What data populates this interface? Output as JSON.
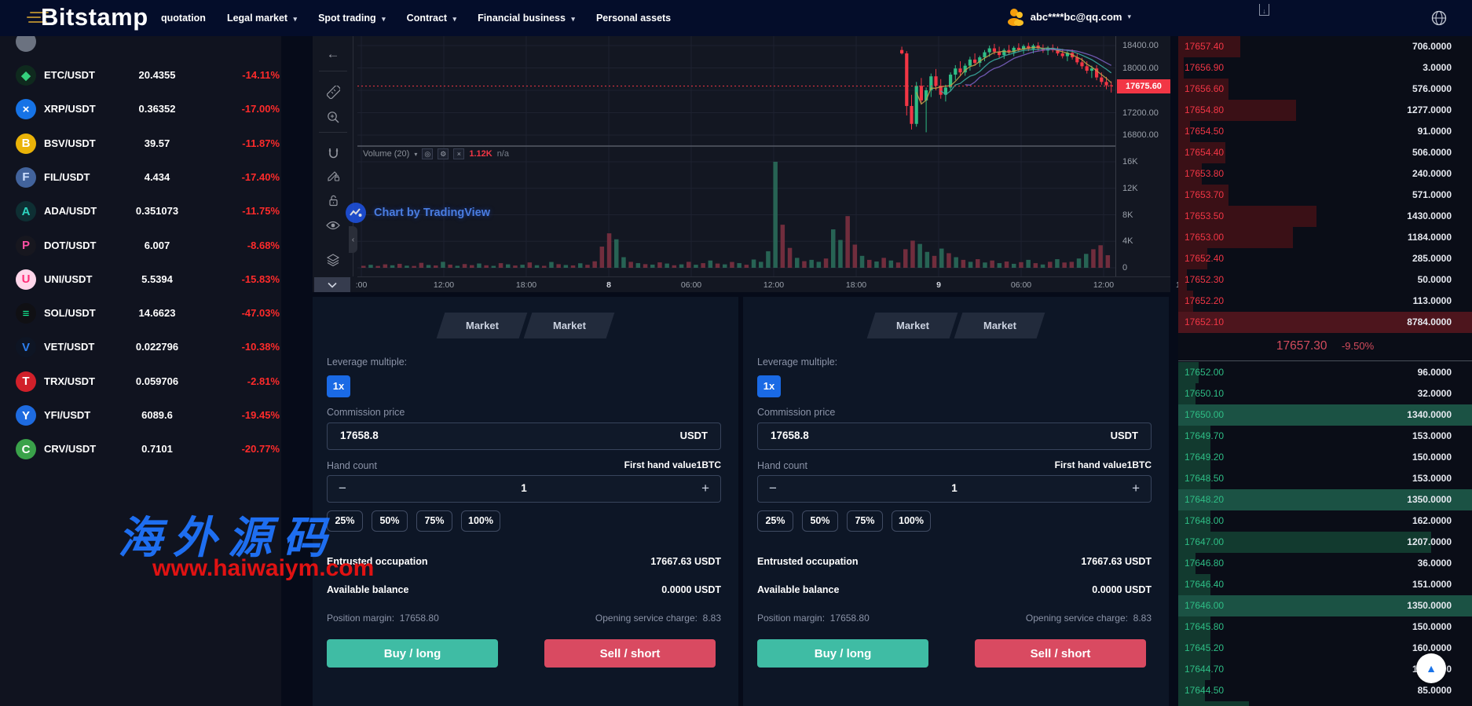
{
  "navbar": {
    "logo": "Bitstamp",
    "items": [
      {
        "label": "quotation",
        "caret": false
      },
      {
        "label": "Legal market",
        "caret": true
      },
      {
        "label": "Spot trading",
        "caret": true
      },
      {
        "label": "Contract",
        "caret": true
      },
      {
        "label": "Financial business",
        "caret": true
      },
      {
        "label": "Personal assets",
        "caret": false
      }
    ],
    "user_email": "abc****bc@qq.com"
  },
  "sidebar": {
    "pairs": [
      {
        "name": "",
        "price": "",
        "change": "",
        "glyph": "",
        "fg": "#cccccc",
        "bg": "#6b7280"
      },
      {
        "name": "ETC/USDT",
        "price": "20.4355",
        "change": "-14.11%",
        "glyph": "◆",
        "fg": "#34d07c",
        "bg": "#0f2a1e"
      },
      {
        "name": "XRP/USDT",
        "price": "0.36352",
        "change": "-17.00%",
        "glyph": "×",
        "fg": "#ffffff",
        "bg": "#1673e6"
      },
      {
        "name": "BSV/USDT",
        "price": "39.57",
        "change": "-11.87%",
        "glyph": "B",
        "fg": "#ffffff",
        "bg": "#eab308"
      },
      {
        "name": "FIL/USDT",
        "price": "4.434",
        "change": "-17.40%",
        "glyph": "F",
        "fg": "#cfe0ff",
        "bg": "#42639c"
      },
      {
        "name": "ADA/USDT",
        "price": "0.351073",
        "change": "-11.75%",
        "glyph": "A",
        "fg": "#2dd4bf",
        "bg": "#0e2f33"
      },
      {
        "name": "DOT/USDT",
        "price": "6.007",
        "change": "-8.68%",
        "glyph": "P",
        "fg": "#ff4fa3",
        "bg": "#17171f"
      },
      {
        "name": "UNI/USDT",
        "price": "5.5394",
        "change": "-15.83%",
        "glyph": "U",
        "fg": "#ff2d78",
        "bg": "#ffd6ea"
      },
      {
        "name": "SOL/USDT",
        "price": "14.6623",
        "change": "-47.03%",
        "glyph": "≡",
        "fg": "#14f195",
        "bg": "#101014"
      },
      {
        "name": "VET/USDT",
        "price": "0.022796",
        "change": "-10.38%",
        "glyph": "V",
        "fg": "#2d7ff0",
        "bg": "#0e1524"
      },
      {
        "name": "TRX/USDT",
        "price": "0.059706",
        "change": "-2.81%",
        "glyph": "T",
        "fg": "#ffffff",
        "bg": "#d1202a"
      },
      {
        "name": "YFI/USDT",
        "price": "6089.6",
        "change": "-19.45%",
        "glyph": "Y",
        "fg": "#ffffff",
        "bg": "#1e6be0"
      },
      {
        "name": "CRV/USDT",
        "price": "0.7101",
        "change": "-20.77%",
        "glyph": "C",
        "fg": "#ffffff",
        "bg": "#3aa24a"
      }
    ]
  },
  "chart": {
    "volume_label": "Volume (20)",
    "volume_value": "1.12K",
    "volume_na": "n/a",
    "tv_logo": "Chart by TradingView",
    "current_price": "17675.60"
  },
  "chart_data": {
    "type": "candlestick+volume",
    "title": "",
    "price_ticks": [
      18400,
      18000,
      17200,
      16800
    ],
    "last_price": 17675.6,
    "volume_ticks": [
      16000,
      12000,
      8000,
      4000,
      0
    ],
    "volume_max": 16000,
    "time_ticks": [
      ":00",
      "12:00",
      "18:00",
      "8",
      "06:00",
      "12:00",
      "18:00",
      "9",
      "06:00",
      "12:00",
      "18:00"
    ],
    "volume_indicator": {
      "name": "Volume (20)",
      "value": 1120
    },
    "candles_ohlc": [
      [
        18320,
        18380,
        18240,
        18260
      ],
      [
        18260,
        18300,
        17150,
        17320
      ],
      [
        17320,
        17520,
        16900,
        17000
      ],
      [
        17000,
        17750,
        16950,
        17680
      ],
      [
        17680,
        17820,
        17350,
        17420
      ],
      [
        17420,
        17650,
        16850,
        17600
      ],
      [
        17600,
        17900,
        17480,
        17850
      ],
      [
        17850,
        17980,
        17600,
        17680
      ],
      [
        17680,
        17800,
        17450,
        17520
      ],
      [
        17520,
        17700,
        17400,
        17650
      ],
      [
        17650,
        17920,
        17580,
        17880
      ],
      [
        17880,
        18050,
        17780,
        17990
      ],
      [
        17990,
        18120,
        17850,
        17920
      ],
      [
        17920,
        18080,
        17860,
        18040
      ],
      [
        18040,
        18200,
        17950,
        18150
      ],
      [
        18150,
        18260,
        18040,
        18090
      ],
      [
        18090,
        18220,
        18020,
        18190
      ],
      [
        18190,
        18320,
        18120,
        18280
      ],
      [
        18280,
        18400,
        18200,
        18350
      ],
      [
        18350,
        18430,
        18240,
        18290
      ],
      [
        18290,
        18380,
        18180,
        18230
      ],
      [
        18230,
        18350,
        18160,
        18320
      ],
      [
        18320,
        18410,
        18230,
        18280
      ],
      [
        18280,
        18390,
        18210,
        18360
      ],
      [
        18360,
        18440,
        18280,
        18330
      ],
      [
        18330,
        18420,
        18250,
        18390
      ],
      [
        18390,
        18450,
        18300,
        18340
      ],
      [
        18340,
        18430,
        18260,
        18400
      ],
      [
        18400,
        18460,
        18310,
        18350
      ],
      [
        18350,
        18420,
        18270,
        18310
      ],
      [
        18310,
        18390,
        18230,
        18360
      ],
      [
        18360,
        18420,
        18280,
        18320
      ],
      [
        18320,
        18380,
        18220,
        18260
      ],
      [
        18260,
        18340,
        18170,
        18210
      ],
      [
        18210,
        18300,
        18120,
        18270
      ],
      [
        18270,
        18330,
        18150,
        18190
      ],
      [
        18190,
        18260,
        18060,
        18100
      ],
      [
        18100,
        18180,
        17980,
        18030
      ],
      [
        18030,
        18120,
        17900,
        17950
      ],
      [
        17950,
        18040,
        17820,
        17990
      ],
      [
        17990,
        18050,
        17780,
        17830
      ],
      [
        17830,
        17920,
        17700,
        17750
      ],
      [
        17750,
        17840,
        17620,
        17690
      ],
      [
        17690,
        17760,
        17560,
        17675.6
      ]
    ],
    "volume_bars": [
      [
        300,
        "r"
      ],
      [
        450,
        "g"
      ],
      [
        280,
        "r"
      ],
      [
        520,
        "r"
      ],
      [
        380,
        "g"
      ],
      [
        600,
        "r"
      ],
      [
        320,
        "g"
      ],
      [
        280,
        "r"
      ],
      [
        750,
        "r"
      ],
      [
        420,
        "g"
      ],
      [
        350,
        "r"
      ],
      [
        900,
        "g"
      ],
      [
        480,
        "r"
      ],
      [
        300,
        "g"
      ],
      [
        560,
        "r"
      ],
      [
        400,
        "r"
      ],
      [
        650,
        "g"
      ],
      [
        380,
        "r"
      ],
      [
        290,
        "g"
      ],
      [
        700,
        "r"
      ],
      [
        520,
        "g"
      ],
      [
        340,
        "r"
      ],
      [
        460,
        "g"
      ],
      [
        810,
        "r"
      ],
      [
        390,
        "g"
      ],
      [
        300,
        "r"
      ],
      [
        880,
        "g"
      ],
      [
        540,
        "r"
      ],
      [
        420,
        "g"
      ],
      [
        360,
        "r"
      ],
      [
        680,
        "g"
      ],
      [
        450,
        "r"
      ],
      [
        980,
        "r"
      ],
      [
        3200,
        "r"
      ],
      [
        5200,
        "r"
      ],
      [
        4300,
        "g"
      ],
      [
        1600,
        "g"
      ],
      [
        900,
        "r"
      ],
      [
        700,
        "g"
      ],
      [
        550,
        "r"
      ],
      [
        480,
        "g"
      ],
      [
        820,
        "r"
      ],
      [
        640,
        "g"
      ],
      [
        380,
        "r"
      ],
      [
        520,
        "g"
      ],
      [
        900,
        "r"
      ],
      [
        460,
        "g"
      ],
      [
        700,
        "r"
      ],
      [
        1100,
        "g"
      ],
      [
        640,
        "r"
      ],
      [
        520,
        "g"
      ],
      [
        880,
        "r"
      ],
      [
        700,
        "g"
      ],
      [
        460,
        "r"
      ],
      [
        1250,
        "g"
      ],
      [
        900,
        "g"
      ],
      [
        2500,
        "g"
      ],
      [
        16000,
        "g"
      ],
      [
        6500,
        "r"
      ],
      [
        3000,
        "r"
      ],
      [
        1500,
        "g"
      ],
      [
        1000,
        "r"
      ],
      [
        1200,
        "g"
      ],
      [
        900,
        "g"
      ],
      [
        1400,
        "r"
      ],
      [
        5800,
        "g"
      ],
      [
        4200,
        "g"
      ],
      [
        7800,
        "r"
      ],
      [
        3500,
        "r"
      ],
      [
        1800,
        "g"
      ],
      [
        1200,
        "r"
      ],
      [
        950,
        "g"
      ],
      [
        1500,
        "r"
      ],
      [
        1100,
        "g"
      ],
      [
        800,
        "r"
      ],
      [
        2800,
        "r"
      ],
      [
        4100,
        "r"
      ],
      [
        3600,
        "g"
      ],
      [
        2400,
        "g"
      ],
      [
        1800,
        "r"
      ],
      [
        2900,
        "g"
      ],
      [
        2200,
        "r"
      ],
      [
        1600,
        "g"
      ],
      [
        1200,
        "r"
      ],
      [
        900,
        "g"
      ],
      [
        1300,
        "r"
      ],
      [
        800,
        "g"
      ],
      [
        1100,
        "r"
      ],
      [
        700,
        "g"
      ],
      [
        950,
        "r"
      ],
      [
        600,
        "g"
      ],
      [
        850,
        "r"
      ],
      [
        1200,
        "g"
      ],
      [
        700,
        "r"
      ],
      [
        500,
        "g"
      ],
      [
        900,
        "r"
      ],
      [
        1300,
        "g"
      ],
      [
        800,
        "r"
      ],
      [
        900,
        "r"
      ],
      [
        1400,
        "g"
      ],
      [
        2100,
        "g"
      ],
      [
        2800,
        "r"
      ],
      [
        3400,
        "r"
      ],
      [
        1900,
        "r"
      ]
    ]
  },
  "panel": {
    "tabs": [
      "Market",
      "Market"
    ],
    "leverage_label": "Leverage multiple:",
    "leverage_value": "1x",
    "commission_label": "Commission price",
    "commission_value": "17658.8",
    "commission_unit": "USDT",
    "hand_count_label": "Hand count",
    "first_hand_label": "First hand value1BTC",
    "hand_value": "1",
    "minus": "−",
    "plus": "+",
    "percents": [
      "25%",
      "50%",
      "75%",
      "100%"
    ],
    "entrusted_label": "Entrusted occupation",
    "entrusted_value": "17667.63 USDT",
    "available_label": "Available balance",
    "available_value": "0.0000 USDT",
    "margin_label": "Position margin:",
    "margin_value": "17658.80",
    "fee_label": "Opening service charge:",
    "fee_value": "8.83",
    "buy_label": "Buy / long",
    "sell_label": "Sell / short"
  },
  "order_book": {
    "asks": [
      [
        "17657.40",
        "706.0000",
        21
      ],
      [
        "17656.90",
        "3.0000",
        2
      ],
      [
        "17656.60",
        "576.0000",
        17
      ],
      [
        "17654.80",
        "1277.0000",
        40
      ],
      [
        "17654.50",
        "91.0000",
        4
      ],
      [
        "17654.40",
        "506.0000",
        16
      ],
      [
        "17653.80",
        "240.0000",
        8
      ],
      [
        "17653.70",
        "571.0000",
        17
      ],
      [
        "17653.50",
        "1430.0000",
        47
      ],
      [
        "17653.00",
        "1184.0000",
        39
      ],
      [
        "17652.40",
        "285.0000",
        10
      ],
      [
        "17652.30",
        "50.0000",
        3
      ],
      [
        "17652.20",
        "113.0000",
        5
      ],
      [
        "17652.10",
        "8784.0000",
        100
      ]
    ],
    "mid_price": "17657.30",
    "mid_change": "-9.50%",
    "bids": [
      [
        "17652.00",
        "96.0000",
        7
      ],
      [
        "17650.10",
        "32.0000",
        6
      ],
      [
        "17650.00",
        "1340.0000",
        100
      ],
      [
        "17649.70",
        "153.0000",
        11
      ],
      [
        "17649.20",
        "150.0000",
        11
      ],
      [
        "17648.50",
        "153.0000",
        11
      ],
      [
        "17648.20",
        "1350.0000",
        100
      ],
      [
        "17648.00",
        "162.0000",
        11
      ],
      [
        "17647.00",
        "1207.0000",
        86
      ],
      [
        "17646.80",
        "36.0000",
        6
      ],
      [
        "17646.40",
        "151.0000",
        11
      ],
      [
        "17646.00",
        "1350.0000",
        100
      ],
      [
        "17645.80",
        "150.0000",
        11
      ],
      [
        "17645.20",
        "160.0000",
        11
      ],
      [
        "17644.70",
        "100.0000",
        11
      ],
      [
        "17644.50",
        "85.0000",
        9
      ],
      [
        "",
        "",
        24
      ]
    ]
  },
  "watermark": {
    "line1": "海外源码",
    "line2": "www.haiwaiym.com"
  }
}
